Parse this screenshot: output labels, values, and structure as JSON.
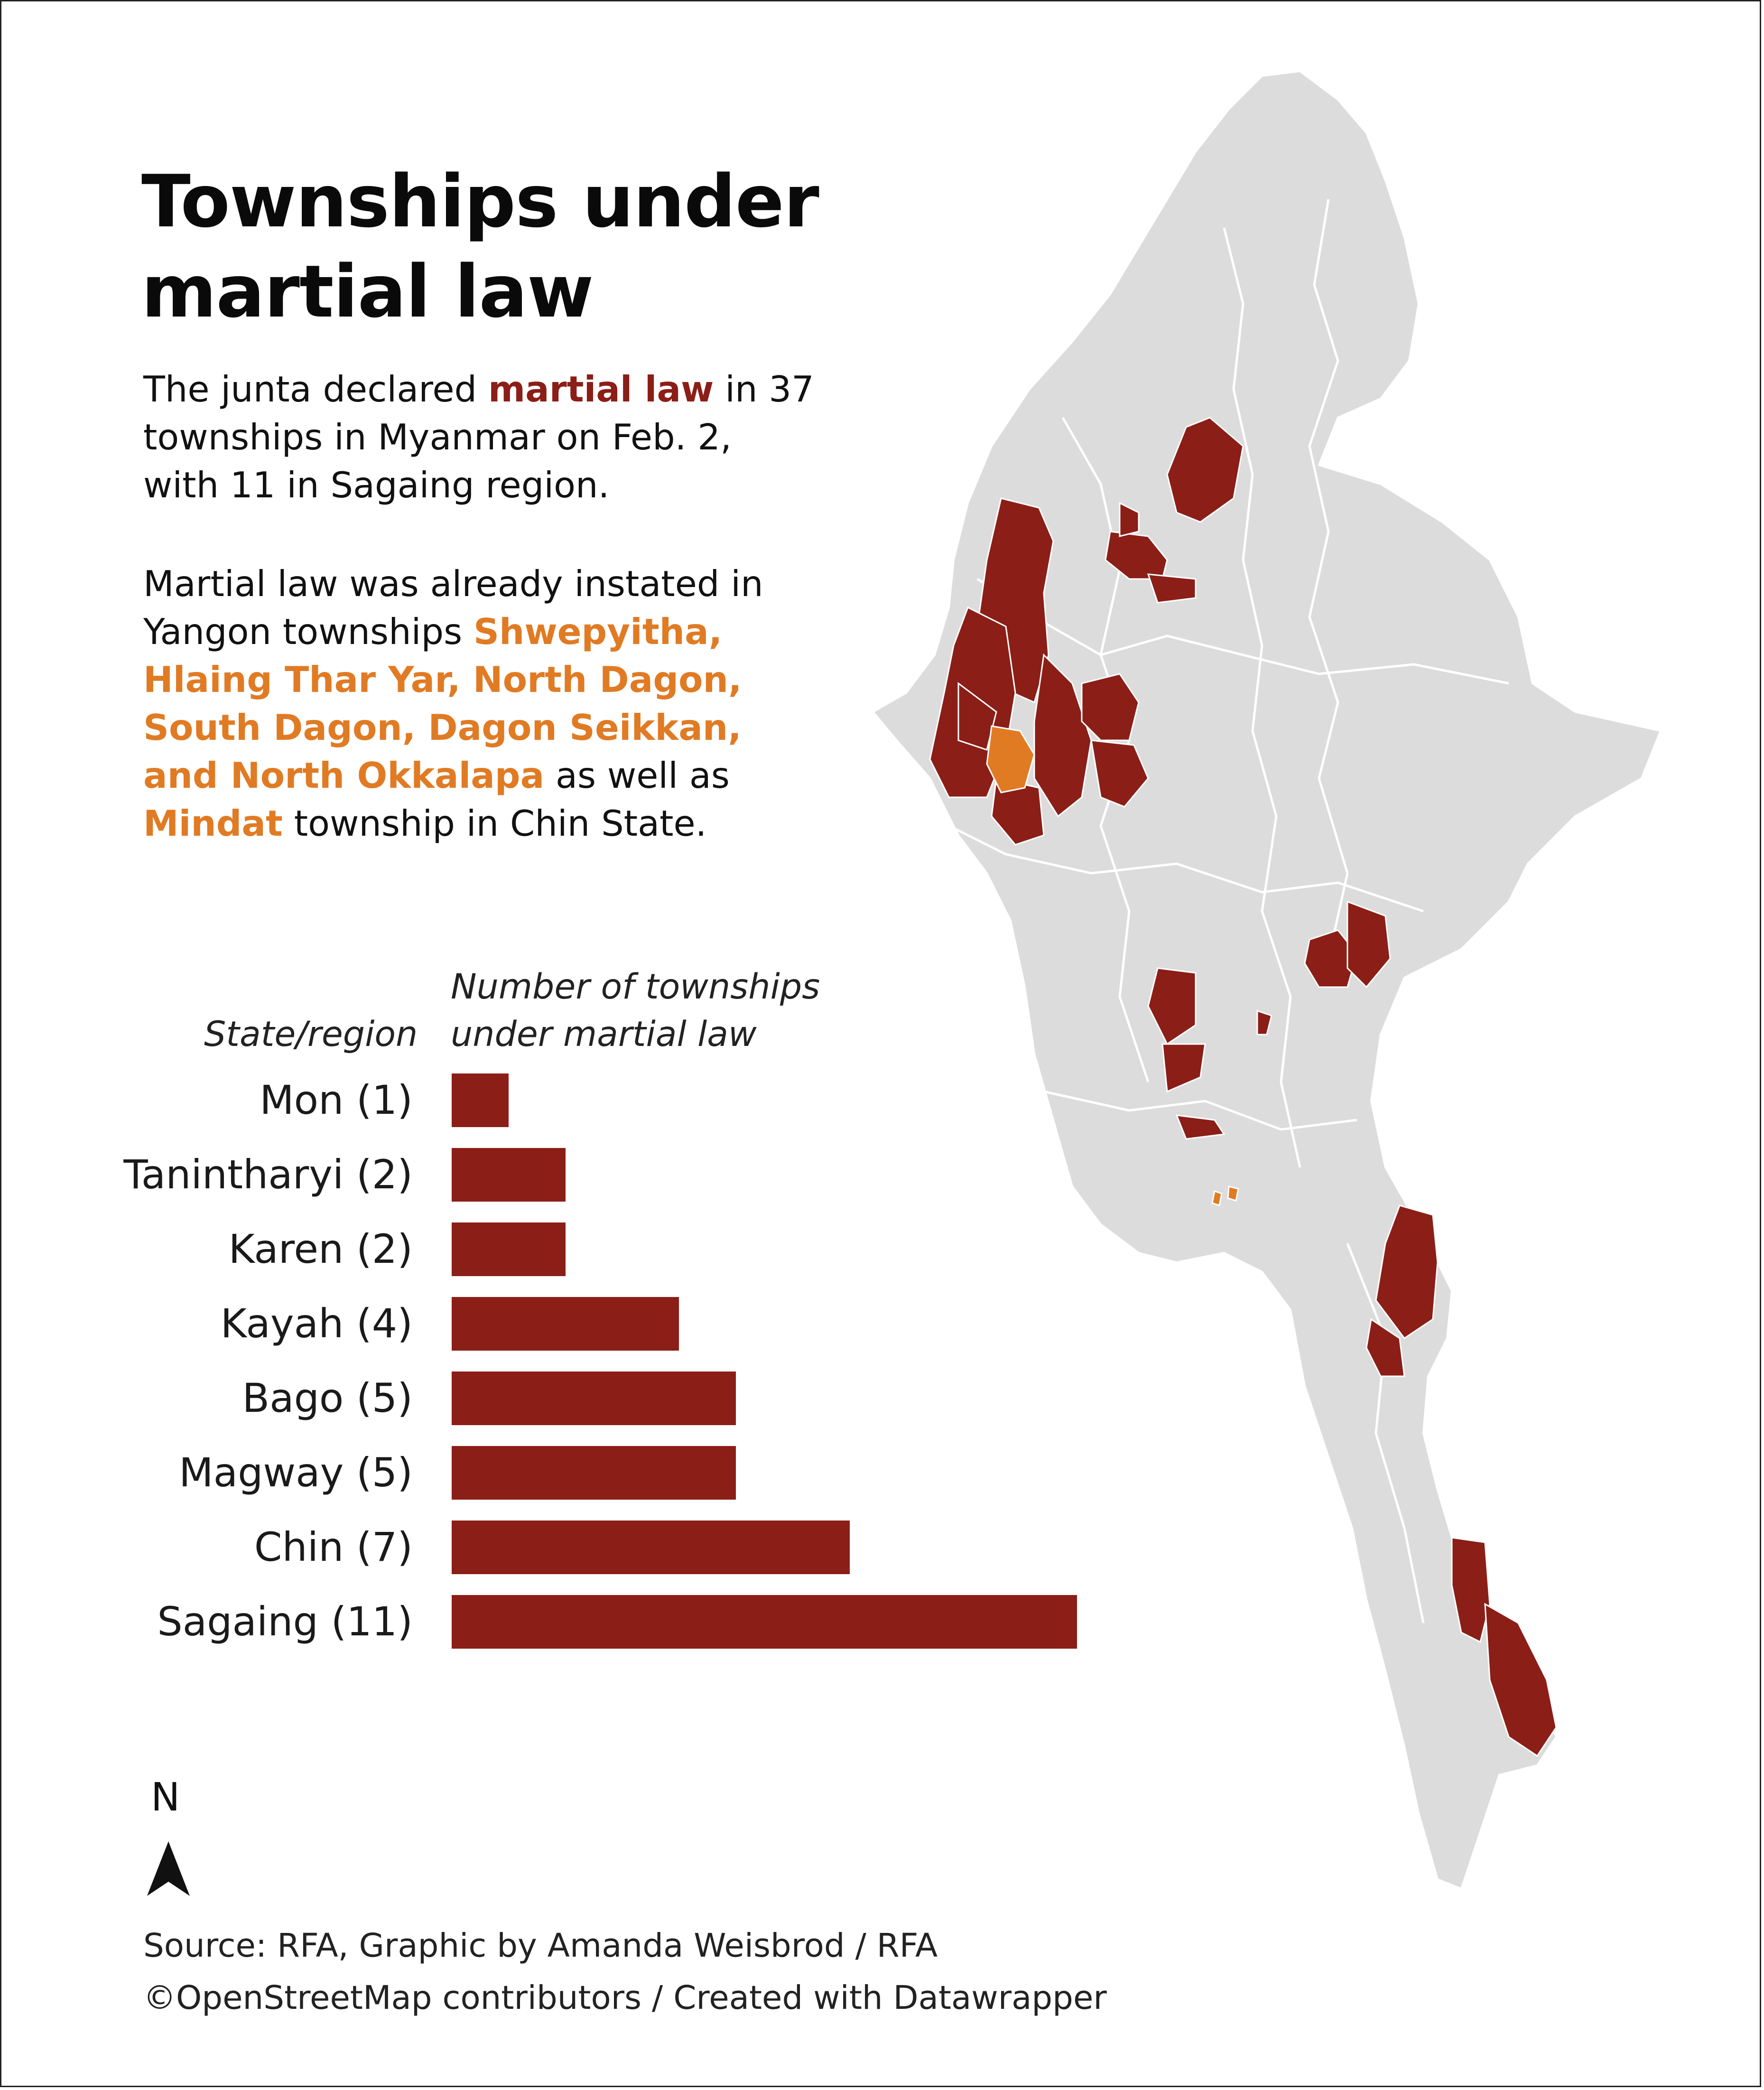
{
  "title": "Townships under martial law",
  "intro": {
    "pre": "The junta declared ",
    "highlight": "martial law",
    "post": " in 37 townships in Myanmar on Feb. 2, with 11 in Sagaing region."
  },
  "second": {
    "pre": "Martial law was already instated in Yangon townships ",
    "yangon": "Shwepyitha, Hlaing Thar Yar, North Dagon, South Dagon, Dagon Seikkan, and North Okkalapa",
    "mid": " as well as ",
    "mindat": "Mindat",
    "post": " township in Chin State."
  },
  "colors": {
    "martial": "#8b1e17",
    "prior": "#e07b24",
    "land": "#dcdcdc",
    "border": "#ffffff"
  },
  "chart_data": {
    "type": "bar",
    "orientation": "horizontal",
    "category_header": "State/region",
    "value_header": "Number of townships under martial law",
    "categories": [
      "Mon (1)",
      "Tanintharyi (2)",
      "Karen (2)",
      "Kayah (4)",
      "Bago (5)",
      "Magway (5)",
      "Chin (7)",
      "Sagaing (11)"
    ],
    "values": [
      1,
      2,
      2,
      4,
      5,
      5,
      7,
      11
    ],
    "xlim": [
      0,
      11
    ],
    "grid": false,
    "color": "#8b1e17"
  },
  "compass": {
    "letter": "N",
    "icon": "north-arrow-icon"
  },
  "source": "Source: RFA, Graphic by Amanda Weisbrod / RFA",
  "credit": "©OpenStreetMap contributors / Created with Datawrapper"
}
